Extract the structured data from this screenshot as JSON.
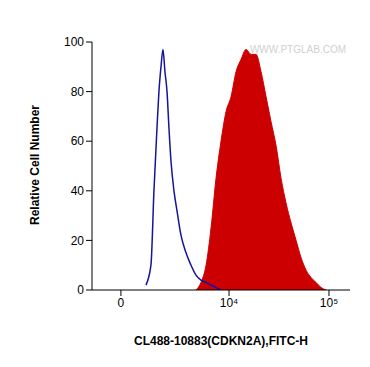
{
  "chart_data": {
    "type": "histogram",
    "x_label": "CL488-10883(CDKN2A),FITC-H",
    "y_label": "Relative Cell Number",
    "annotations": [
      "WWW.PTGLAB.COM"
    ],
    "log": "x",
    "xlim": [
      -900,
      160000
    ],
    "xticks": [
      0,
      {
        "value": 10000,
        "label": "10⁴"
      },
      {
        "value": 100000,
        "label": "10⁵"
      }
    ],
    "ylim": [
      0,
      100
    ],
    "yticks": [
      0,
      20,
      40,
      60,
      80,
      100
    ],
    "grid": false,
    "series": [
      {
        "type": "line",
        "color": "#14149e",
        "x": [
          742,
          946,
          1080,
          1223,
          1323,
          1432,
          1541,
          1655,
          1780,
          1904,
          2034,
          2243,
          2467,
          2793,
          3236,
          3732,
          4285,
          4902,
          5607,
          6379,
          7240,
          8205
        ],
        "values": [
          2,
          10,
          40,
          65,
          80,
          90,
          97,
          88,
          80,
          65,
          52,
          40,
          32,
          22,
          15,
          10,
          6,
          4,
          3,
          2,
          1,
          0
        ]
      },
      {
        "type": "area",
        "color": "#cc0000",
        "x": [
          4285,
          4902,
          5607,
          6379,
          7240,
          8205,
          9300,
          10510,
          11850,
          13360,
          15040,
          16940,
          19040,
          21390,
          24000,
          26900,
          30300,
          33900,
          38000,
          42600,
          47700,
          53400,
          59800,
          66900,
          74900,
          83900,
          93800
        ],
        "values": [
          0,
          3,
          10,
          25,
          45,
          60,
          72,
          78,
          88,
          93,
          97,
          95,
          95,
          88,
          78,
          68,
          58,
          45,
          35,
          27,
          20,
          13,
          8,
          5,
          3,
          1,
          0
        ]
      }
    ]
  }
}
